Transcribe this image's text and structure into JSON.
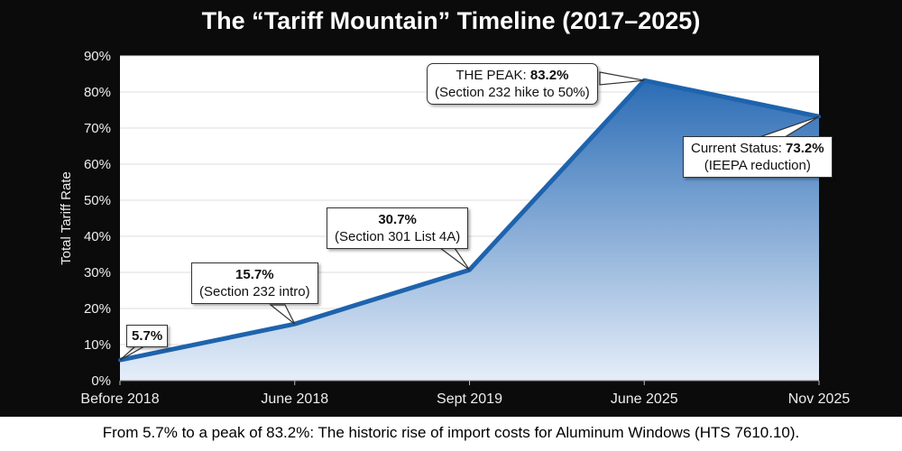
{
  "chart_data": {
    "type": "area",
    "title": "The “Tariff Mountain” Timeline (2017–2025)",
    "ylabel": "Total Tariff Rate",
    "xlabel": "",
    "categories": [
      "Before 2018",
      "June 2018",
      "Sept 2019",
      "June 2025",
      "Nov 2025"
    ],
    "values": [
      5.7,
      15.7,
      30.7,
      83.2,
      73.2
    ],
    "ylim": [
      0,
      90
    ],
    "yticks": [
      "0%",
      "10%",
      "20%",
      "30%",
      "40%",
      "50%",
      "60%",
      "70%",
      "80%",
      "90%"
    ],
    "grid": true,
    "line_color": "#1e63ad",
    "fill_top_color": "#2b6cb5",
    "fill_bottom_color": "#e6eef9",
    "annotations": [
      {
        "bold": "5.7%",
        "text": ""
      },
      {
        "bold": "15.7%",
        "text": "(Section 232 intro)"
      },
      {
        "bold": "30.7%",
        "text": "(Section 301 List 4A)"
      },
      {
        "prefix": "THE PEAK: ",
        "bold": "83.2%",
        "text": "(Section 232 hike to 50%)"
      },
      {
        "prefix": "Current Status: ",
        "bold": "73.2%",
        "text": "(IEEPA reduction)"
      }
    ]
  },
  "footer": "From 5.7% to a peak of 83.2%: The historic rise of import costs for Aluminum Windows (HTS 7610.10)."
}
